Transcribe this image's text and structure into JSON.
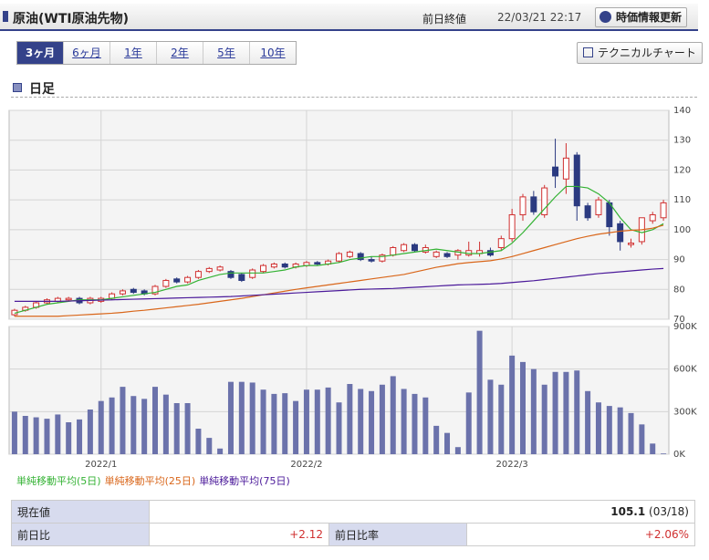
{
  "header": {
    "title": "原油(WTI原油先物)",
    "close_label": "前日終値",
    "datetime": "22/03/21 22:17",
    "refresh_button": "時価情報更新"
  },
  "tabs": [
    "3ヶ月",
    "6ヶ月",
    "1年",
    "2年",
    "5年",
    "10年"
  ],
  "technical_button": "テクニカルチャート",
  "section_title": "日足",
  "chart_data": [
    {
      "type": "candlestick",
      "categories": [
        null,
        null,
        null,
        null,
        null,
        null,
        null,
        null,
        "2022/1",
        null,
        null,
        null,
        null,
        null,
        null,
        null,
        null,
        null,
        null,
        null,
        null,
        null,
        null,
        null,
        null,
        null,
        null,
        "2022/2",
        null,
        null,
        null,
        null,
        null,
        null,
        null,
        null,
        null,
        null,
        null,
        null,
        null,
        null,
        null,
        null,
        null,
        null,
        "2022/3",
        null,
        null,
        null,
        null,
        null,
        null,
        null,
        null,
        null,
        null,
        null,
        null,
        null,
        null
      ],
      "open": [
        71.5,
        73,
        74,
        75.5,
        76,
        76.5,
        77,
        75.5,
        76,
        77,
        78.5,
        80,
        79.5,
        78.5,
        81,
        83.5,
        82.5,
        84,
        86,
        86.5,
        86,
        85,
        84,
        86,
        87.5,
        88.5,
        87.5,
        88,
        89,
        88.5,
        89.5,
        91,
        92,
        90,
        89.5,
        91.5,
        93,
        95,
        92.5,
        91,
        92,
        91.5,
        91.5,
        92,
        93,
        94,
        97,
        105,
        111,
        105,
        121,
        117,
        125,
        108,
        105,
        109,
        102,
        95,
        96,
        103,
        104
      ],
      "high": [
        73.5,
        74.5,
        76,
        77,
        77.5,
        77.5,
        77.5,
        77.5,
        77.5,
        79,
        80,
        80.5,
        80,
        81.5,
        83.5,
        84,
        84.5,
        86.5,
        87.5,
        88,
        86.5,
        85.5,
        87,
        88.5,
        89,
        89,
        89,
        89.5,
        89.5,
        90,
        92.5,
        93,
        92.5,
        91,
        92,
        94.5,
        95.5,
        95.5,
        95,
        93,
        92.5,
        93.5,
        96,
        96,
        94,
        98,
        107,
        112,
        113,
        115,
        130.5,
        129,
        126,
        109,
        111,
        110,
        103,
        97,
        104,
        106,
        110
      ],
      "low": [
        71,
        72.5,
        73.5,
        75,
        75.5,
        76,
        75,
        75,
        75.5,
        76.5,
        78,
        78.5,
        78,
        78,
        80.5,
        82,
        82,
        83.5,
        85.5,
        86,
        83.5,
        82.5,
        83.5,
        85.5,
        87,
        87,
        87,
        87.5,
        88,
        88,
        89,
        90.5,
        89.5,
        89,
        89,
        91,
        92.5,
        92.5,
        92,
        90.5,
        90.5,
        90,
        91,
        91,
        91,
        93,
        96,
        103,
        105,
        104,
        114,
        112,
        103,
        103,
        104,
        98,
        93,
        94,
        95,
        102,
        103
      ],
      "close": [
        73,
        74,
        75.5,
        76.5,
        77,
        77,
        75.5,
        77,
        77,
        78.5,
        79.5,
        79,
        78.5,
        81,
        83,
        82.5,
        84,
        86,
        87,
        87.5,
        84,
        83,
        86.5,
        88,
        88.5,
        87.5,
        88.5,
        89,
        88.5,
        89.5,
        92,
        92.5,
        90,
        89.5,
        91.5,
        94,
        95,
        93,
        94,
        92.5,
        91,
        93,
        93,
        93,
        91.5,
        97,
        105,
        111,
        106,
        114,
        118,
        124,
        108,
        104,
        110,
        101,
        96,
        95.5,
        104,
        105,
        109
      ],
      "up_color": "#d03030",
      "down_color": "#2b3a80",
      "series": [
        {
          "name": "単純移動平均(5日)",
          "color": "#33b233",
          "values": [
            72,
            73,
            74,
            75,
            75.5,
            76,
            76.5,
            76.5,
            76.5,
            77,
            77.5,
            78,
            78.5,
            79,
            80,
            81,
            81.5,
            83,
            84,
            85,
            85.5,
            85.5,
            85.5,
            85.5,
            86,
            86.5,
            87.5,
            88,
            88,
            88.5,
            89,
            90,
            90.5,
            91,
            91,
            91.5,
            92,
            92.5,
            93,
            93.5,
            93,
            92.5,
            92,
            92,
            92.5,
            93,
            95.5,
            99,
            103,
            107,
            111,
            114.5,
            114.5,
            114,
            112,
            109,
            104,
            100,
            99,
            100,
            102
          ]
        },
        {
          "name": "単純移動平均(25日)",
          "color": "#d9661a",
          "values": [
            71,
            71,
            71,
            71,
            71,
            71.2,
            71.4,
            71.6,
            71.8,
            72,
            72.3,
            72.7,
            73,
            73.4,
            73.8,
            74.2,
            74.6,
            75,
            75.5,
            76,
            76.5,
            77,
            77.6,
            78.2,
            78.8,
            79.4,
            80,
            80.5,
            81,
            81.5,
            82,
            82.5,
            83,
            83.5,
            84,
            84.5,
            85,
            85.8,
            86.6,
            87.4,
            88,
            88.6,
            89,
            89.3,
            89.6,
            90.2,
            91,
            92,
            93,
            94,
            95,
            96,
            97,
            97.8,
            98.5,
            99,
            99.5,
            99.8,
            100,
            100.5,
            101.5
          ]
        },
        {
          "name": "単純移動平均(75日)",
          "color": "#4b1a9a",
          "values": [
            76,
            76,
            76,
            76,
            76,
            76.1,
            76.2,
            76.3,
            76.4,
            76.5,
            76.6,
            76.7,
            76.8,
            76.9,
            77,
            77.1,
            77.2,
            77.3,
            77.4,
            77.5,
            77.6,
            77.8,
            78,
            78.2,
            78.4,
            78.6,
            78.8,
            79,
            79.2,
            79.4,
            79.6,
            79.8,
            80,
            80.1,
            80.2,
            80.3,
            80.5,
            80.7,
            80.9,
            81.1,
            81.3,
            81.5,
            81.6,
            81.7,
            81.8,
            82,
            82.3,
            82.6,
            82.9,
            83.3,
            83.7,
            84.1,
            84.5,
            84.9,
            85.3,
            85.6,
            85.9,
            86.2,
            86.5,
            86.8,
            87
          ]
        }
      ],
      "ylim": [
        70,
        140
      ],
      "yticks": [
        70,
        80,
        90,
        100,
        110,
        120,
        130,
        140
      ],
      "grid": true
    },
    {
      "type": "bar",
      "color": "#6b72ab",
      "values": [
        300000,
        270000,
        260000,
        250000,
        280000,
        225000,
        245000,
        315000,
        375000,
        400000,
        475000,
        410000,
        390000,
        475000,
        420000,
        360000,
        360000,
        180000,
        115000,
        40000,
        510000,
        510000,
        505000,
        455000,
        425000,
        430000,
        375000,
        455000,
        455000,
        470000,
        365000,
        495000,
        460000,
        445000,
        490000,
        550000,
        460000,
        425000,
        400000,
        200000,
        150000,
        50000,
        435000,
        870000,
        525000,
        490000,
        695000,
        650000,
        600000,
        490000,
        580000,
        580000,
        590000,
        445000,
        365000,
        340000,
        330000,
        290000,
        210000,
        75000,
        5000
      ],
      "ylim": [
        0,
        900000
      ],
      "yticks": [
        {
          "value": 0,
          "label": "0K"
        },
        {
          "value": 300000,
          "label": "300K"
        },
        {
          "value": 600000,
          "label": "600K"
        },
        {
          "value": 900000,
          "label": "900K"
        }
      ],
      "grid": true
    }
  ],
  "table": {
    "rows": [
      [
        "現在値",
        "105.1",
        "(03/18)"
      ],
      [
        "前日比",
        "+2.12",
        "前日比率",
        "+2.06%"
      ]
    ]
  }
}
